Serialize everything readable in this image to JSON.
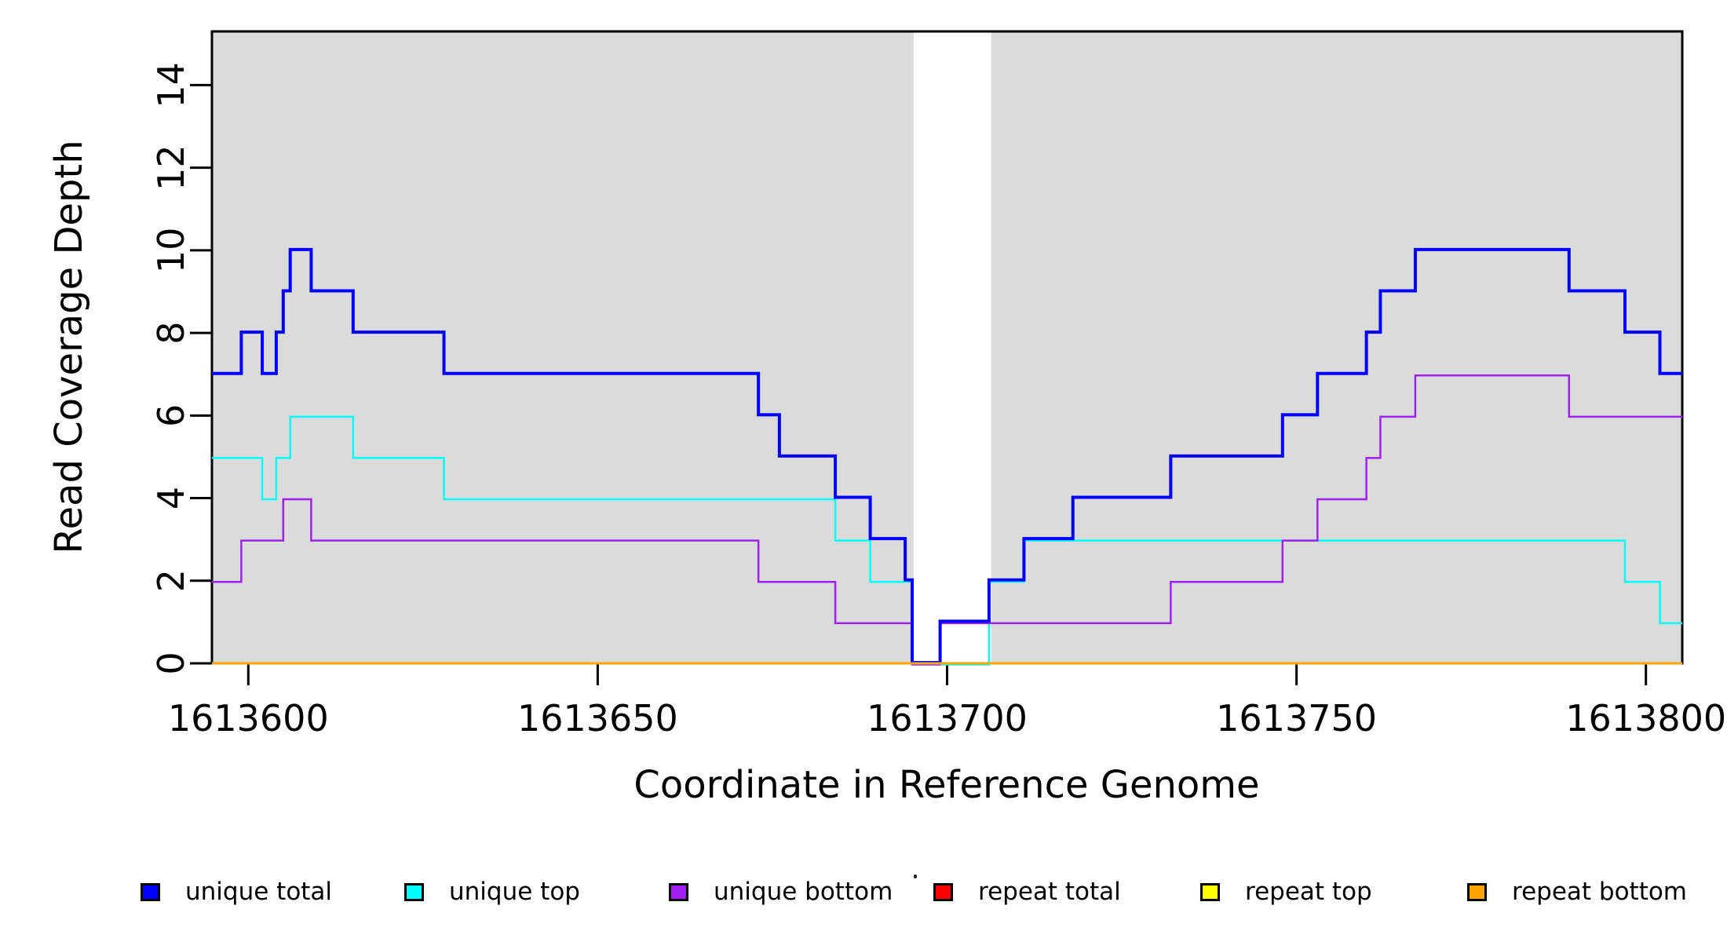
{
  "chart_data": {
    "type": "line",
    "subtype": "step-coverage",
    "title": "",
    "xlabel": "Coordinate in Reference Genome",
    "ylabel": "Read Coverage Depth",
    "xlim": [
      1613594.8,
      1613805.2
    ],
    "ylim": [
      0,
      15.3
    ],
    "x_ticks": [
      1613600,
      1613650,
      1613700,
      1613750,
      1613800
    ],
    "y_ticks": [
      0,
      2,
      4,
      6,
      8,
      10,
      12,
      14
    ],
    "grid": "off",
    "plot_bg": "#ffffff",
    "shaded_regions": [
      {
        "x0": 1613594.8,
        "x1": 1613695.2,
        "color": "#DBDBDB"
      },
      {
        "x0": 1613706.3,
        "x1": 1613805.2,
        "color": "#DBDBDB"
      }
    ],
    "series": [
      {
        "name": "repeat total",
        "color": "#FF0000",
        "end_x": 1613805.2,
        "steps": [
          [
            1613594.8,
            0
          ]
        ]
      },
      {
        "name": "repeat top",
        "color": "#FFFF00",
        "end_x": 1613805.2,
        "steps": [
          [
            1613594.8,
            0
          ]
        ]
      },
      {
        "name": "unique top",
        "color": "#00FFFF",
        "end_x": 1613805.2,
        "steps": [
          [
            1613594.8,
            5
          ],
          [
            1613602,
            4
          ],
          [
            1613604,
            5
          ],
          [
            1613606,
            6
          ],
          [
            1613615,
            5
          ],
          [
            1613628,
            4
          ],
          [
            1613684,
            3
          ],
          [
            1613689,
            2
          ],
          [
            1613695,
            0
          ],
          [
            1613706,
            2
          ],
          [
            1613711,
            3
          ],
          [
            1613797,
            2
          ],
          [
            1613802,
            1
          ]
        ]
      },
      {
        "name": "unique bottom",
        "color": "#A020F0",
        "end_x": 1613805.2,
        "steps": [
          [
            1613594.8,
            2
          ],
          [
            1613599,
            3
          ],
          [
            1613605,
            4
          ],
          [
            1613609,
            3
          ],
          [
            1613673,
            2
          ],
          [
            1613684,
            1
          ],
          [
            1613695,
            0
          ],
          [
            1613699,
            1
          ],
          [
            1613732,
            2
          ],
          [
            1613748,
            3
          ],
          [
            1613753,
            4
          ],
          [
            1613760,
            5
          ],
          [
            1613762,
            6
          ],
          [
            1613767,
            7
          ],
          [
            1613789,
            6
          ]
        ]
      },
      {
        "name": "unique total",
        "color": "#0000FF",
        "end_x": 1613805.2,
        "steps": [
          [
            1613594.8,
            7
          ],
          [
            1613599,
            8
          ],
          [
            1613602,
            7
          ],
          [
            1613604,
            8
          ],
          [
            1613605,
            9
          ],
          [
            1613606,
            10
          ],
          [
            1613609,
            9
          ],
          [
            1613615,
            8
          ],
          [
            1613628,
            7
          ],
          [
            1613673,
            6
          ],
          [
            1613676,
            5
          ],
          [
            1613684,
            4
          ],
          [
            1613689,
            3
          ],
          [
            1613694,
            2
          ],
          [
            1613695,
            0
          ],
          [
            1613699,
            1
          ],
          [
            1613706,
            2
          ],
          [
            1613711,
            3
          ],
          [
            1613718,
            4
          ],
          [
            1613732,
            5
          ],
          [
            1613748,
            6
          ],
          [
            1613753,
            7
          ],
          [
            1613760,
            8
          ],
          [
            1613762,
            9
          ],
          [
            1613767,
            10
          ],
          [
            1613789,
            9
          ],
          [
            1613797,
            8
          ],
          [
            1613802,
            7
          ]
        ]
      },
      {
        "name": "repeat bottom",
        "color": "#FFA500",
        "end_x": 1613805.2,
        "steps": [
          [
            1613594.8,
            0
          ]
        ]
      }
    ]
  },
  "legend": {
    "items": [
      {
        "label": "unique total",
        "color": "#0000FF"
      },
      {
        "label": "unique top",
        "color": "#00FFFF"
      },
      {
        "label": "unique bottom",
        "color": "#A020F0"
      },
      {
        "label": "repeat total",
        "color": "#FF0000"
      },
      {
        "label": "repeat top",
        "color": "#FFFF00"
      },
      {
        "label": "repeat bottom",
        "color": "#FFA500"
      }
    ]
  }
}
